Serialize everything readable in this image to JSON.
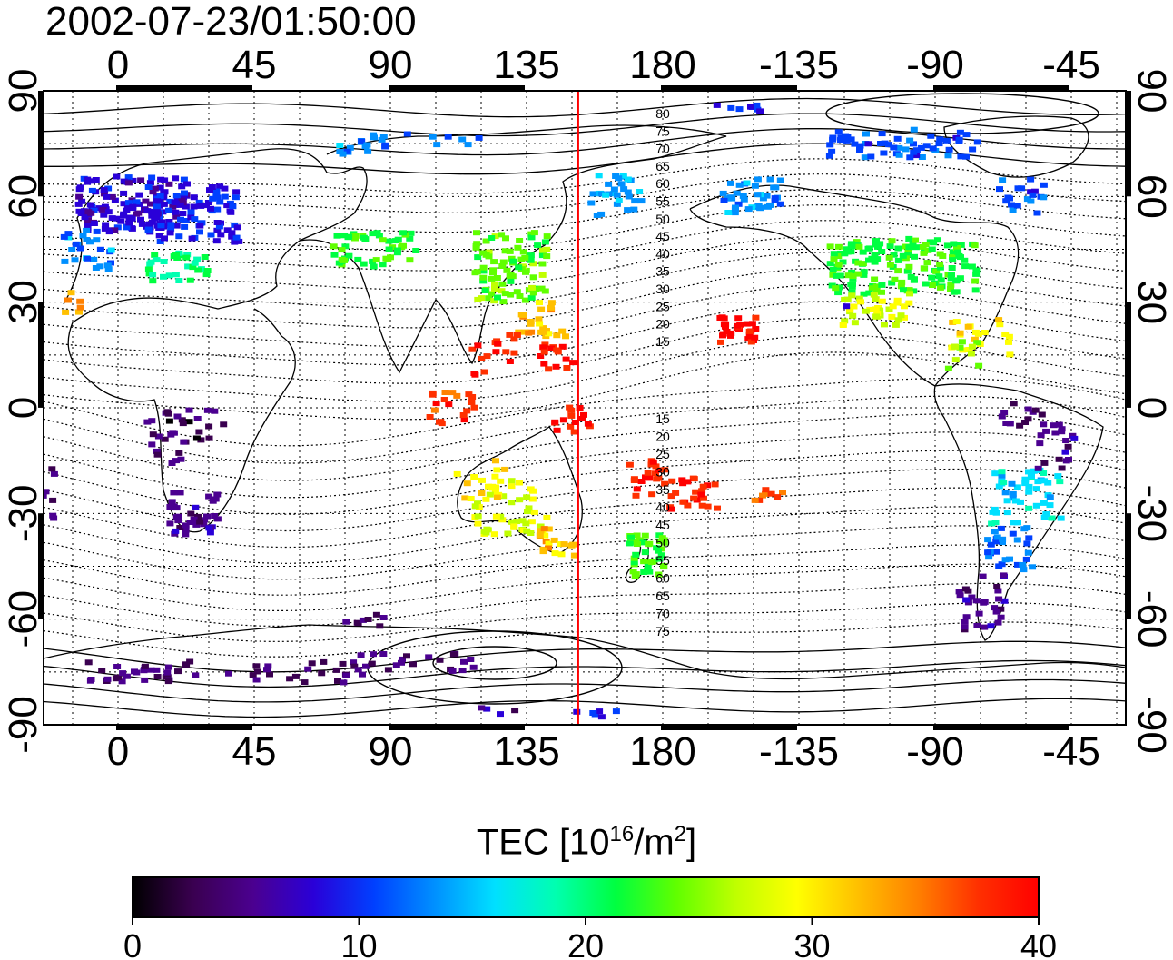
{
  "title": "2002-07-23/01:50:00",
  "map": {
    "x_ticks": [
      "0",
      "45",
      "90",
      "135",
      "180",
      "-135",
      "-90",
      "-45"
    ],
    "y_ticks": [
      "90",
      "60",
      "30",
      "0",
      "-30",
      "-60",
      "-90"
    ],
    "red_line_longitude": 152,
    "contour_labels_north": [
      "80",
      "75",
      "70",
      "65",
      "60",
      "55",
      "50",
      "45",
      "40",
      "35",
      "30",
      "25",
      "20",
      "15"
    ],
    "contour_labels_south": [
      "15",
      "20",
      "25",
      "30",
      "35",
      "40",
      "45",
      "50",
      "55",
      "60",
      "65",
      "70",
      "75"
    ]
  },
  "colorbar": {
    "label_main": "TEC  [10",
    "label_exp1": "16",
    "label_mid": "/m",
    "label_exp2": "2",
    "label_end": "]",
    "ticks": [
      "0",
      "10",
      "20",
      "30",
      "40"
    ],
    "colors": [
      "#000000",
      "#3a0050",
      "#4b0090",
      "#2a00d8",
      "#0040ff",
      "#0090ff",
      "#00e0ff",
      "#00ffb0",
      "#00ff40",
      "#60ff00",
      "#c0ff00",
      "#ffff00",
      "#ffc000",
      "#ff8000",
      "#ff3000",
      "#ff0000"
    ]
  }
}
